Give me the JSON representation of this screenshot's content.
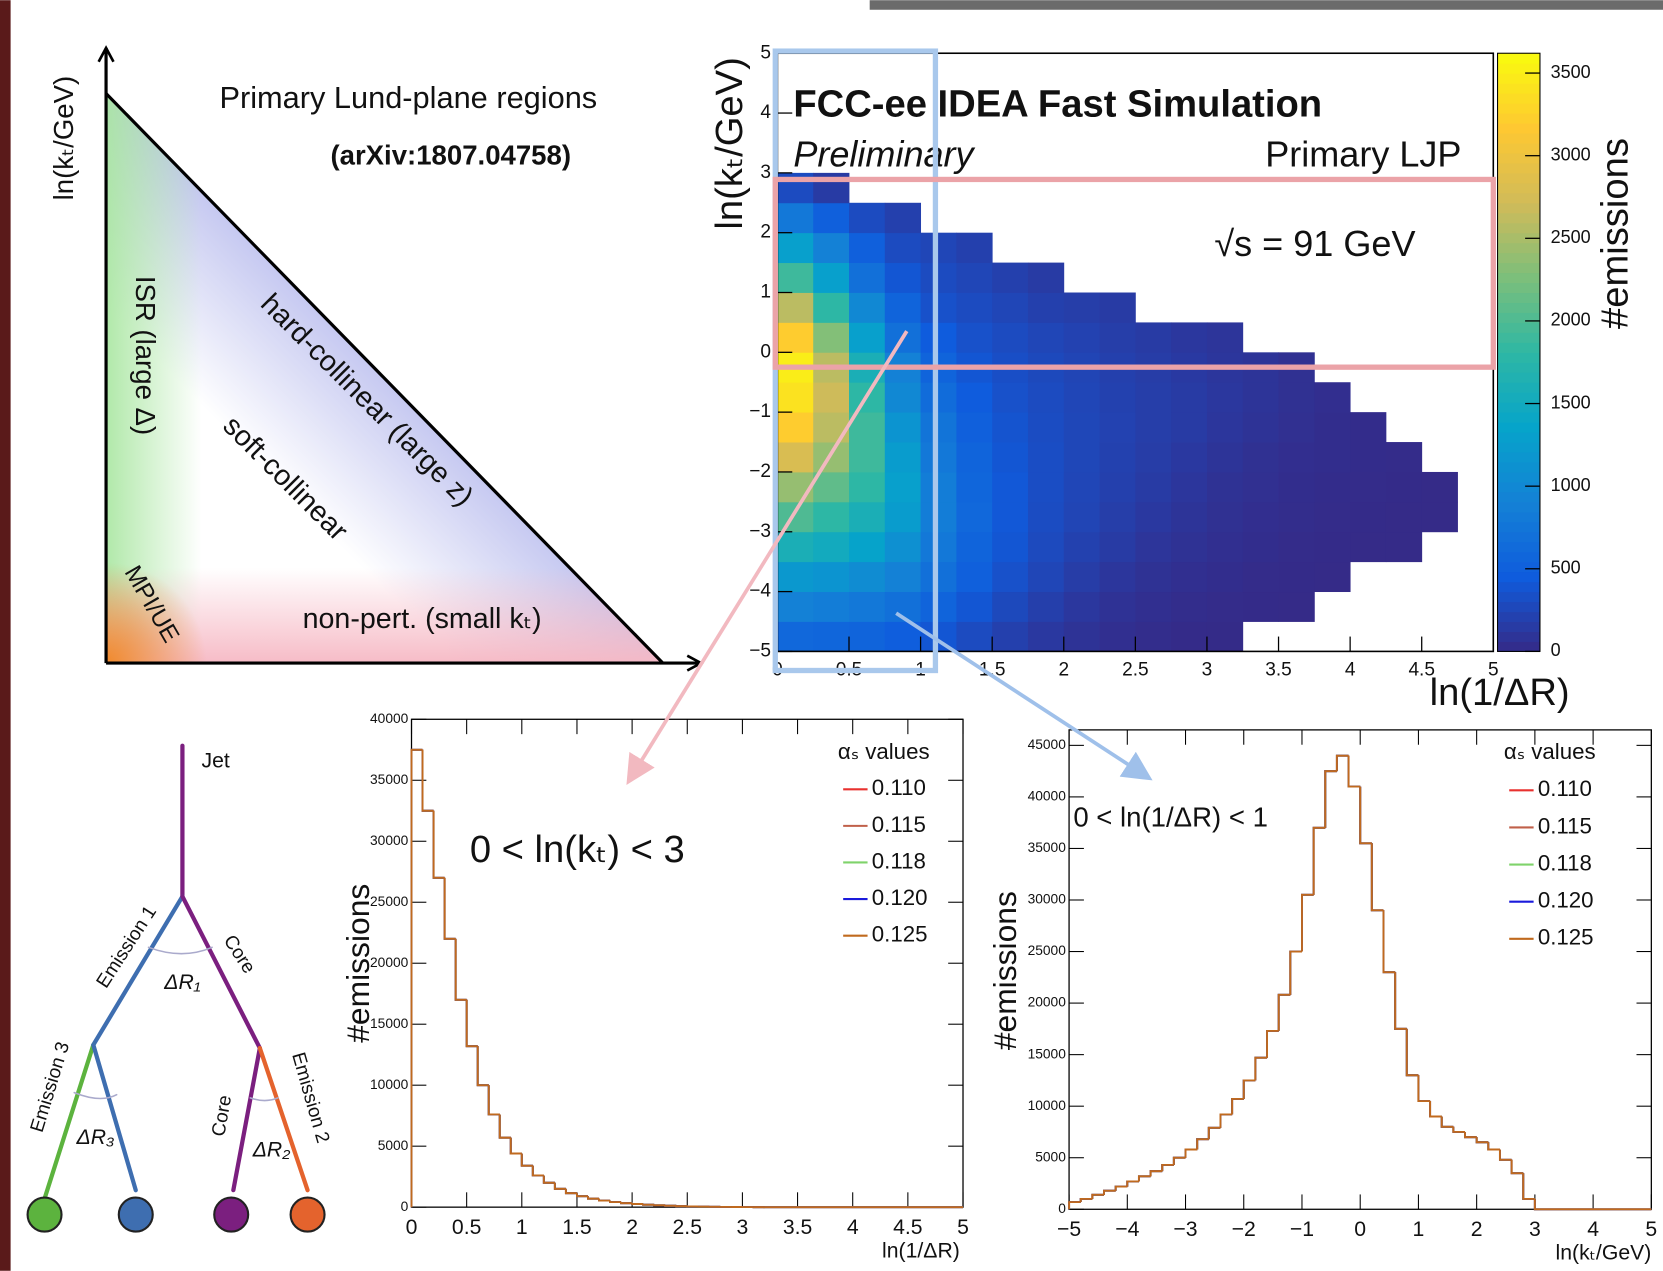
{
  "lund_diagram": {
    "axis_label": "ln(kₜ/GeV)",
    "title": "Primary Lund-plane regions",
    "reference": "(arXiv:1807.04758)",
    "regions": [
      "ISR (large Δ)",
      "hard-collinear (large z)",
      "soft-collinear",
      "MPI/UE",
      "non-pert. (small kₜ)"
    ]
  },
  "jet_tree": {
    "labels": [
      "Jet",
      "Emission 1",
      "Core",
      "ΔR₁",
      "Emission 3",
      "ΔR₃",
      "Core",
      "ΔR₂",
      "Emission 2"
    ]
  },
  "chart_data": [
    {
      "type": "heatmap",
      "title": "FCC-ee IDEA Fast Simulation",
      "subtitle": "Preliminary",
      "annotations": [
        "Primary LJP",
        "√s = 91 GeV"
      ],
      "xlabel": "ln(1/ΔR)",
      "ylabel": "ln(kₜ/GeV)",
      "zlabel": "#emissions",
      "xlim": [
        0,
        5
      ],
      "ylim": [
        -5,
        5
      ],
      "zlim": [
        0,
        3620
      ],
      "xticks": [
        0,
        0.5,
        1,
        1.5,
        2,
        2.5,
        3,
        3.5,
        4,
        4.5,
        5
      ],
      "yticks": [
        {
          "value": -5,
          "label": "−5"
        },
        {
          "value": -4,
          "label": "−4"
        },
        {
          "value": -3,
          "label": "−3"
        },
        {
          "value": -2,
          "label": "−2"
        },
        {
          "value": -1,
          "label": "−1"
        },
        0,
        1,
        2,
        3,
        4,
        5
      ],
      "zticks": [
        0,
        500,
        1000,
        1500,
        2000,
        2500,
        3000,
        3500
      ],
      "colormap": [
        "#352a87",
        "#0f5cdd",
        "#1481d6",
        "#06a4ca",
        "#2eb7a4",
        "#7cbf7b",
        "#d1bb59",
        "#fec832",
        "#f9fb0e"
      ],
      "xbins": [
        0,
        0.25,
        0.5,
        0.75,
        1,
        1.25,
        1.5,
        1.75,
        2,
        2.25,
        2.5,
        2.75,
        3,
        3.25,
        3.5,
        3.75,
        4,
        4.25,
        4.5,
        4.75,
        5
      ],
      "ybins": [
        -5,
        -4.5,
        -4,
        -3.5,
        -3,
        -2.5,
        -2,
        -1.5,
        -1,
        -0.5,
        0,
        0.5,
        1,
        1.5,
        2,
        2.5,
        3
      ],
      "z": [
        [
          600,
          580,
          550,
          480,
          400,
          300,
          200,
          130,
          80,
          45,
          25,
          12,
          6,
          0,
          0,
          0,
          0,
          0,
          0,
          0
        ],
        [
          900,
          850,
          800,
          700,
          550,
          400,
          280,
          190,
          120,
          75,
          45,
          25,
          15,
          8,
          5,
          0,
          0,
          0,
          0,
          0
        ],
        [
          1200,
          1150,
          1050,
          900,
          700,
          500,
          350,
          250,
          170,
          110,
          70,
          45,
          30,
          15,
          10,
          5,
          0,
          0,
          0,
          0
        ],
        [
          1600,
          1500,
          1350,
          1100,
          800,
          550,
          400,
          290,
          210,
          150,
          100,
          70,
          45,
          30,
          15,
          10,
          5,
          5,
          0,
          0
        ],
        [
          2000,
          1800,
          1600,
          1250,
          850,
          600,
          420,
          310,
          240,
          180,
          130,
          90,
          60,
          40,
          25,
          15,
          10,
          5,
          5,
          0
        ],
        [
          2400,
          2100,
          1800,
          1300,
          850,
          580,
          420,
          320,
          250,
          200,
          150,
          110,
          70,
          50,
          30,
          20,
          15,
          10,
          5,
          0
        ],
        [
          2800,
          2400,
          1900,
          1250,
          800,
          550,
          400,
          320,
          260,
          210,
          170,
          130,
          90,
          60,
          40,
          30,
          20,
          15,
          0,
          0
        ],
        [
          3200,
          2600,
          1900,
          1150,
          750,
          500,
          380,
          310,
          260,
          220,
          180,
          150,
          110,
          80,
          50,
          30,
          20,
          0,
          0,
          0
        ],
        [
          3400,
          2700,
          1800,
          1000,
          650,
          450,
          350,
          300,
          250,
          210,
          180,
          150,
          120,
          90,
          60,
          40,
          0,
          0,
          0,
          0
        ],
        [
          3500,
          2600,
          1600,
          900,
          550,
          400,
          330,
          280,
          240,
          200,
          170,
          140,
          110,
          90,
          60,
          0,
          0,
          0,
          0,
          0
        ],
        [
          3200,
          2300,
          1300,
          700,
          450,
          350,
          300,
          250,
          220,
          180,
          150,
          120,
          100,
          0,
          0,
          0,
          0,
          0,
          0,
          0
        ],
        [
          2600,
          1800,
          1000,
          550,
          350,
          300,
          250,
          200,
          180,
          150,
          0,
          0,
          0,
          0,
          0,
          0,
          0,
          0,
          0,
          0
        ],
        [
          1900,
          1300,
          700,
          400,
          300,
          250,
          200,
          150,
          0,
          0,
          0,
          0,
          0,
          0,
          0,
          0,
          0,
          0,
          0,
          0
        ],
        [
          1300,
          900,
          500,
          300,
          250,
          200,
          0,
          0,
          0,
          0,
          0,
          0,
          0,
          0,
          0,
          0,
          0,
          0,
          0,
          0
        ],
        [
          800,
          500,
          300,
          200,
          0,
          0,
          0,
          0,
          0,
          0,
          0,
          0,
          0,
          0,
          0,
          0,
          0,
          0,
          0,
          0
        ],
        [
          300,
          150,
          0,
          0,
          0,
          0,
          0,
          0,
          0,
          0,
          0,
          0,
          0,
          0,
          0,
          0,
          0,
          0,
          0,
          0
        ]
      ]
    },
    {
      "type": "histogram",
      "xlabel": "ln(1/ΔR)",
      "ylabel": "#emissions",
      "annotation": "0 < ln(kₜ) < 3",
      "legend_title": "αₛ values",
      "xlim": [
        0,
        5
      ],
      "ylim": [
        0,
        40000
      ],
      "xticks": [
        0,
        0.5,
        1,
        1.5,
        2,
        2.5,
        3,
        3.5,
        4,
        4.5,
        5
      ],
      "yticks": [
        0,
        5000,
        10000,
        15000,
        20000,
        25000,
        30000,
        35000,
        40000
      ],
      "bins": [
        0,
        0.1,
        0.2,
        0.3,
        0.4,
        0.5,
        0.6,
        0.7,
        0.8,
        0.9,
        1,
        1.1,
        1.2,
        1.3,
        1.4,
        1.5,
        1.6,
        1.7,
        1.8,
        1.9,
        2,
        2.1,
        2.2,
        2.3,
        2.4,
        2.5,
        2.6,
        2.7,
        2.8,
        2.9,
        3,
        3.1,
        3.2
      ],
      "series": [
        {
          "name": "0.110",
          "color": "#e8312f",
          "values": [
            37500,
            32500,
            27000,
            22000,
            17000,
            13200,
            10000,
            7600,
            5700,
            4400,
            3400,
            2600,
            2000,
            1500,
            1150,
            900,
            700,
            540,
            420,
            330,
            260,
            200,
            150,
            115,
            85,
            60,
            45,
            30,
            20,
            12,
            6,
            2
          ]
        },
        {
          "name": "0.115",
          "color": "#c0604a",
          "values": [
            37500,
            32500,
            27000,
            22000,
            17000,
            13200,
            10000,
            7600,
            5700,
            4400,
            3400,
            2600,
            2000,
            1500,
            1150,
            900,
            700,
            540,
            420,
            330,
            260,
            200,
            150,
            115,
            85,
            60,
            45,
            30,
            20,
            12,
            6,
            2
          ]
        },
        {
          "name": "0.118",
          "color": "#7fd36b",
          "values": [
            37500,
            32500,
            27000,
            22000,
            17000,
            13200,
            10000,
            7600,
            5700,
            4400,
            3400,
            2600,
            2000,
            1500,
            1150,
            900,
            700,
            540,
            420,
            330,
            260,
            200,
            150,
            115,
            85,
            60,
            45,
            30,
            20,
            12,
            6,
            2
          ]
        },
        {
          "name": "0.120",
          "color": "#1a1adb",
          "values": [
            37500,
            32500,
            27000,
            22000,
            17000,
            13200,
            10000,
            7600,
            5700,
            4400,
            3400,
            2600,
            2000,
            1500,
            1150,
            900,
            700,
            540,
            420,
            330,
            260,
            200,
            150,
            115,
            85,
            60,
            45,
            30,
            20,
            12,
            6,
            2
          ]
        },
        {
          "name": "0.125",
          "color": "#c06a1e",
          "values": [
            37500,
            32500,
            27000,
            22000,
            17000,
            13200,
            10000,
            7600,
            5700,
            4400,
            3400,
            2600,
            2000,
            1500,
            1150,
            900,
            700,
            540,
            420,
            330,
            260,
            200,
            150,
            115,
            85,
            60,
            45,
            30,
            20,
            12,
            6,
            2
          ]
        }
      ]
    },
    {
      "type": "histogram",
      "xlabel": "ln(kₜ/GeV)",
      "ylabel": "#emissions",
      "annotation": "0 < ln(1/ΔR) < 1",
      "legend_title": "αₛ values",
      "xlim": [
        -5,
        5
      ],
      "ylim": [
        0,
        46500
      ],
      "xticks": [
        {
          "value": -5,
          "label": "−5"
        },
        {
          "value": -4,
          "label": "−4"
        },
        {
          "value": -3,
          "label": "−3"
        },
        {
          "value": -2,
          "label": "−2"
        },
        {
          "value": -1,
          "label": "−1"
        },
        0,
        1,
        2,
        3,
        4,
        5
      ],
      "yticks": [
        0,
        5000,
        10000,
        15000,
        20000,
        25000,
        30000,
        35000,
        40000,
        45000
      ],
      "bins": [
        -5,
        -4.8,
        -4.6,
        -4.4,
        -4.2,
        -4,
        -3.8,
        -3.6,
        -3.4,
        -3.2,
        -3,
        -2.8,
        -2.6,
        -2.4,
        -2.2,
        -2,
        -1.8,
        -1.6,
        -1.4,
        -1.2,
        -1,
        -0.8,
        -0.6,
        -0.4,
        -0.2,
        0,
        0.2,
        0.4,
        0.6,
        0.8,
        1,
        1.2,
        1.4,
        1.6,
        1.8,
        2,
        2.2,
        2.4,
        2.6,
        2.8,
        3
      ],
      "series": [
        {
          "name": "0.110",
          "color": "#e8312f",
          "values": [
            700,
            1000,
            1400,
            1800,
            2200,
            2700,
            3200,
            3700,
            4300,
            5000,
            5800,
            6800,
            7900,
            9200,
            10700,
            12500,
            14700,
            17300,
            20800,
            25000,
            30500,
            37000,
            42500,
            44000,
            41000,
            35500,
            29000,
            23000,
            17500,
            13000,
            10500,
            9000,
            8000,
            7500,
            7000,
            6500,
            5800,
            4800,
            3500,
            1000
          ]
        },
        {
          "name": "0.115",
          "color": "#c0604a",
          "values": [
            700,
            1000,
            1400,
            1800,
            2200,
            2700,
            3200,
            3700,
            4300,
            5000,
            5800,
            6800,
            7900,
            9200,
            10700,
            12500,
            14700,
            17300,
            20800,
            25000,
            30500,
            37000,
            42500,
            44000,
            41000,
            35500,
            29000,
            23000,
            17500,
            13000,
            10500,
            9000,
            8000,
            7500,
            7000,
            6500,
            5800,
            4800,
            3500,
            1000
          ]
        },
        {
          "name": "0.118",
          "color": "#7fd36b",
          "values": [
            700,
            1000,
            1400,
            1800,
            2200,
            2700,
            3200,
            3700,
            4300,
            5000,
            5800,
            6800,
            7900,
            9200,
            10700,
            12500,
            14700,
            17300,
            20800,
            25000,
            30500,
            37000,
            42500,
            44000,
            41000,
            35500,
            29000,
            23000,
            17500,
            13000,
            10500,
            9000,
            8000,
            7500,
            7000,
            6500,
            5800,
            4800,
            3500,
            1000
          ]
        },
        {
          "name": "0.120",
          "color": "#1a1adb",
          "values": [
            700,
            1000,
            1400,
            1800,
            2200,
            2700,
            3200,
            3700,
            4300,
            5000,
            5800,
            6800,
            7900,
            9200,
            10700,
            12500,
            14700,
            17300,
            20800,
            25000,
            30500,
            37000,
            42500,
            44000,
            41000,
            35500,
            29000,
            23000,
            17500,
            13000,
            10500,
            9000,
            8000,
            7500,
            7000,
            6500,
            5800,
            4800,
            3500,
            1000
          ]
        },
        {
          "name": "0.125",
          "color": "#c06a1e",
          "values": [
            700,
            1000,
            1400,
            1800,
            2200,
            2700,
            3200,
            3700,
            4300,
            5000,
            5800,
            6800,
            7900,
            9200,
            10700,
            12500,
            14700,
            17300,
            20800,
            25000,
            30500,
            37000,
            42500,
            44000,
            41000,
            35500,
            29000,
            23000,
            17500,
            13000,
            10500,
            9000,
            8000,
            7500,
            7000,
            6500,
            5800,
            4800,
            3500,
            1000
          ]
        }
      ]
    }
  ]
}
